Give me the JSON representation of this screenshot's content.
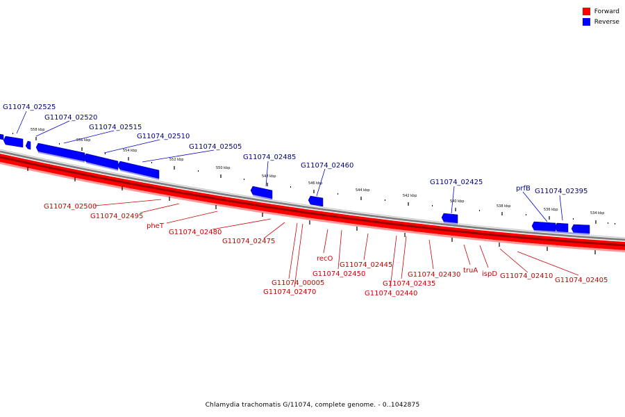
{
  "legend": {
    "forward_label": "Forward",
    "reverse_label": "Reverse",
    "forward_color": "#ff0000",
    "reverse_color": "#0000ff"
  },
  "caption": "Chlamydia trachomatis G/11074, complete genome. - 0..1042875",
  "colors": {
    "forward_label": "#cc0000",
    "reverse_label": "#000080",
    "backbone": "#808080"
  },
  "ticks": [
    "558 kbp",
    "556 kbp",
    "554 kbp",
    "552 kbp",
    "550 kbp",
    "548 kbp",
    "546 kbp",
    "544 kbp",
    "542 kbp",
    "540 kbp",
    "538 kbp",
    "536 kbp",
    "534 kbp"
  ],
  "reverse_genes": [
    "G11074_02525",
    "G11074_02520",
    "G11074_02515",
    "G11074_02510",
    "G11074_02505",
    "G11074_02485",
    "G11074_02460",
    "G11074_02425",
    "prfB",
    "G11074_02395"
  ],
  "forward_genes": [
    "G11074_02500",
    "G11074_02495",
    "pheT",
    "G11074_02480",
    "G11074_02475",
    "G11074_00005",
    "G11074_02470",
    "recO",
    "G11074_02450",
    "G11074_02445",
    "G11074_02435",
    "G11074_02440",
    "G11074_02430",
    "truA",
    "ispD",
    "G11074_02410",
    "G11074_02405"
  ]
}
